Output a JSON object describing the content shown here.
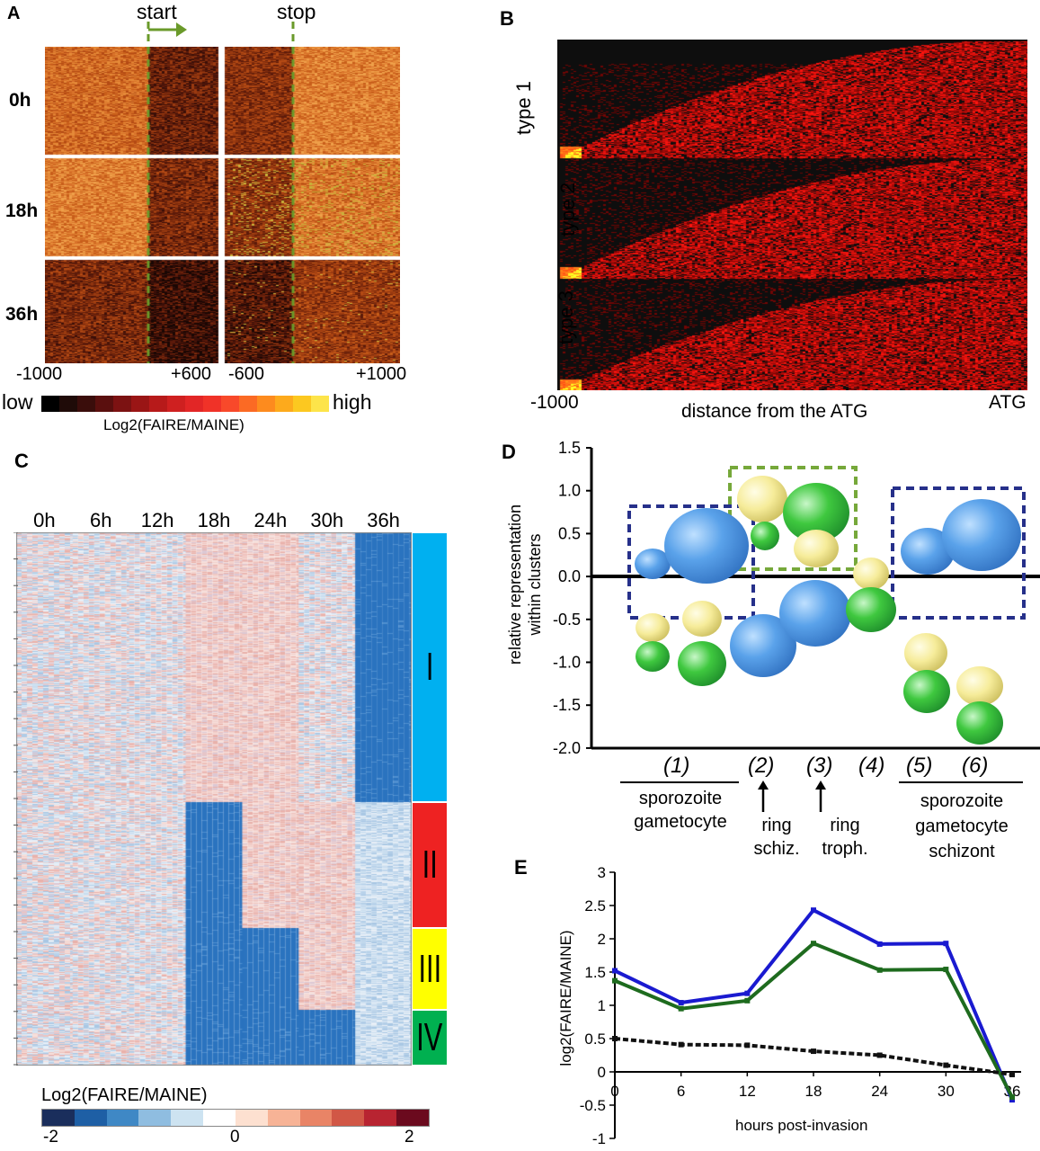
{
  "panels": {
    "a": {
      "letter": "A",
      "start_label": "start",
      "stop_label": "stop",
      "rows": [
        "0h",
        "18h",
        "36h"
      ],
      "x_ticks_left": [
        "-1000",
        "+600"
      ],
      "x_ticks_right": [
        "-600",
        "+1000"
      ],
      "scale_low": "low",
      "scale_high": "high",
      "scale_title": "Log2(FAIRE/MAINE)",
      "scale_colors": [
        "#000000",
        "#1f0b08",
        "#3a0d0b",
        "#5a0f0e",
        "#7c1212",
        "#9a1515",
        "#b71a1a",
        "#cf2020",
        "#e22626",
        "#f03228",
        "#f8492a",
        "#fb6a24",
        "#fd8b1e",
        "#fdaa1c",
        "#fcc820",
        "#fde44a"
      ]
    },
    "b": {
      "letter": "B",
      "types": [
        "type 1",
        "type 2",
        "type 3"
      ],
      "x_left": "-1000",
      "x_right": "ATG",
      "xlabel": "distance from the ATG"
    },
    "c": {
      "letter": "C",
      "columns": [
        "0h",
        "6h",
        "12h",
        "18h",
        "24h",
        "30h",
        "36h"
      ],
      "clusters": [
        {
          "label": "I",
          "color": "#00b0f0"
        },
        {
          "label": "II",
          "color": "#ee2222"
        },
        {
          "label": "III",
          "color": "#ffff00"
        },
        {
          "label": "IV",
          "color": "#00b050"
        }
      ],
      "scale_title": "Log2(FAIRE/MAINE)",
      "scale_ticks": [
        "-2",
        "0",
        "2"
      ],
      "scale_colors": [
        "#1a2e5c",
        "#1e5fa5",
        "#3f88c5",
        "#8fbde0",
        "#cde3f1",
        "#ffffff",
        "#fde0d0",
        "#f7b396",
        "#e98466",
        "#d15746",
        "#b82431",
        "#6b0a1e"
      ]
    },
    "d": {
      "letter": "D",
      "ylabel_line1": "relative representation",
      "ylabel_line2": "within clusters",
      "yticks": [
        "1.5",
        "1.0",
        "0.5",
        "0.0",
        "-0.5",
        "-1.0",
        "-1.5",
        "-2.0"
      ],
      "groups": [
        "(1)",
        "(2)",
        "(3)",
        "(4)",
        "(5)",
        "(6)"
      ],
      "group1_stages": [
        "sporozoite",
        "gametocyte"
      ],
      "group2_stages": [
        "ring",
        "schiz."
      ],
      "group3_stages": [
        "ring",
        "troph."
      ],
      "group56_stages": [
        "sporozoite",
        "gametocyte",
        "schizont"
      ]
    },
    "e": {
      "letter": "E",
      "ylabel": "log2(FAIRE/MAINE)",
      "xlabel": "hours post-invasion"
    }
  },
  "chart_data": {
    "type": "line",
    "x": [
      0,
      6,
      12,
      18,
      24,
      30,
      36
    ],
    "xticks": [
      "0",
      "6",
      "12",
      "18",
      "24",
      "30",
      "36"
    ],
    "yticks": [
      "3",
      "2.5",
      "2",
      "1.5",
      "1",
      "0.5",
      "0",
      "-0.5",
      "-1"
    ],
    "ylim": [
      -1,
      3
    ],
    "xlim": [
      0,
      36
    ],
    "series": [
      {
        "color": "#1a1ad0",
        "values": [
          1.52,
          1.04,
          1.18,
          2.43,
          1.92,
          1.93,
          -0.42
        ]
      },
      {
        "color": "#1e6b1e",
        "values": [
          1.37,
          0.95,
          1.07,
          1.93,
          1.53,
          1.54,
          -0.38
        ]
      },
      {
        "color": "#111111",
        "values": [
          0.5,
          0.41,
          0.4,
          0.31,
          0.25,
          0.1,
          -0.04
        ]
      }
    ]
  }
}
